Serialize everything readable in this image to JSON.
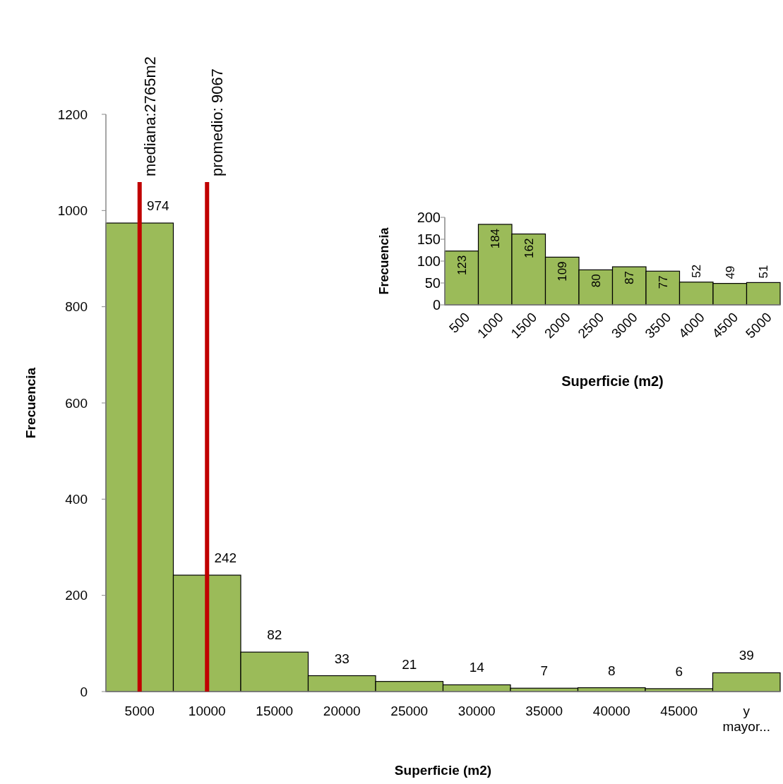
{
  "chart_data": [
    {
      "type": "bar",
      "categories": [
        "5000",
        "10000",
        "15000",
        "20000",
        "25000",
        "30000",
        "35000",
        "40000",
        "45000",
        "y mayor..."
      ],
      "values": [
        974,
        242,
        82,
        33,
        21,
        14,
        7,
        8,
        6,
        39
      ],
      "color": "#9bbb59",
      "data_labels": true,
      "ylim": [
        0,
        1200
      ],
      "yticks": [
        0,
        200,
        400,
        600,
        800,
        1000,
        1200
      ],
      "xlabel": "Superficie (m2)",
      "ylabel": "Frecuencia",
      "grid": false,
      "ref_lines": [
        {
          "axis": "x",
          "value": "5000",
          "label": "mediana:2765m2",
          "color": "#c00000"
        },
        {
          "axis": "x",
          "value": "10000",
          "label": "promedio: 9067",
          "color": "#c00000"
        }
      ]
    },
    {
      "type": "bar",
      "categories": [
        "500",
        "1000",
        "1500",
        "2000",
        "2500",
        "3000",
        "3500",
        "4000",
        "4500",
        "5000"
      ],
      "values": [
        123,
        184,
        162,
        109,
        80,
        87,
        77,
        52,
        49,
        51
      ],
      "color": "#9bbb59",
      "data_labels": true,
      "ylim": [
        0,
        200
      ],
      "yticks": [
        0,
        50,
        100,
        150,
        200
      ],
      "xlabel": "Superficie (m2)",
      "ylabel": "Frecuencia",
      "grid": false
    }
  ]
}
